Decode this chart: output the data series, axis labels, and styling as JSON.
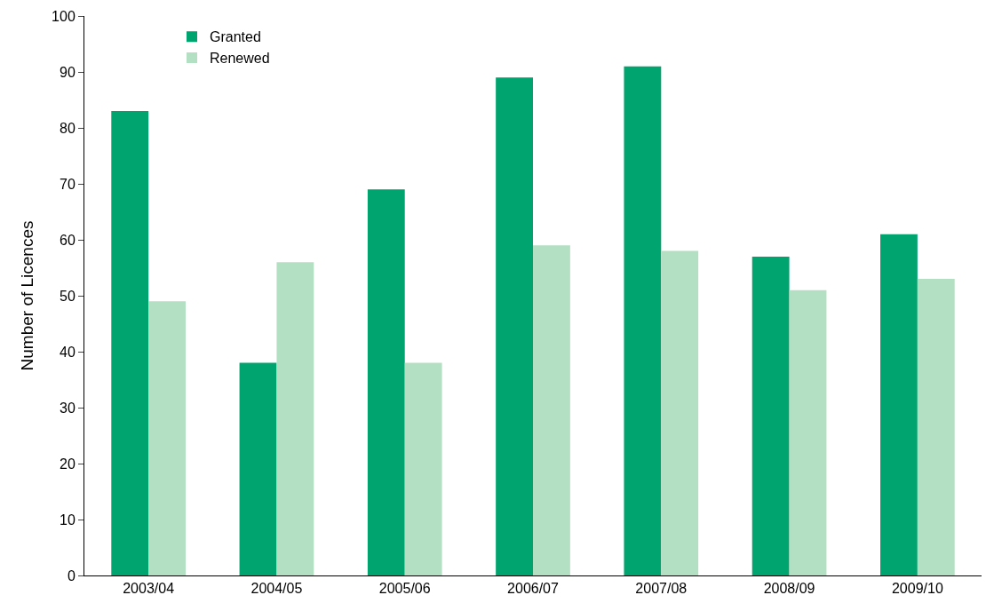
{
  "chart_data": {
    "type": "bar",
    "ylabel": "Number of Licences",
    "categories": [
      "2003/04",
      "2004/05",
      "2005/06",
      "2006/07",
      "2007/08",
      "2008/09",
      "2009/10"
    ],
    "series": [
      {
        "name": "Granted",
        "color": "#00a46e",
        "values": [
          83,
          38,
          69,
          89,
          91,
          57,
          61
        ]
      },
      {
        "name": "Renewed",
        "color": "#b3dfc2",
        "values": [
          49,
          56,
          38,
          59,
          58,
          51,
          53
        ]
      }
    ],
    "ylim": [
      0,
      100
    ],
    "yticks": [
      0,
      10,
      20,
      30,
      40,
      50,
      60,
      70,
      80,
      90,
      100
    ],
    "legend": "top left"
  }
}
